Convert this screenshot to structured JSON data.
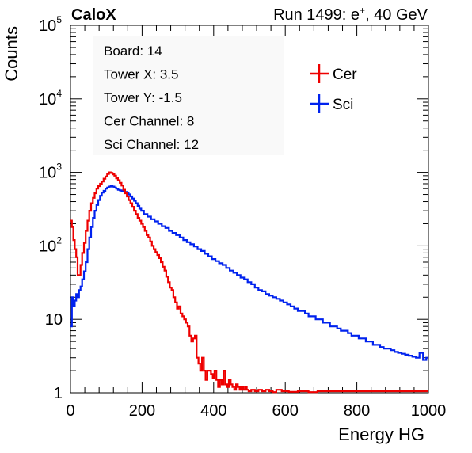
{
  "header": {
    "left": "CaloX",
    "right_prefix": "Run 1499: e",
    "right_sup": "+",
    "right_suffix": ", 40 GeV"
  },
  "info_box": {
    "lines": [
      "Board: 14",
      "Tower X: 3.5",
      "Tower Y: -1.5",
      "Cer Channel: 8",
      "Sci Channel: 12"
    ]
  },
  "colors": {
    "cer": "#ee0000",
    "sci": "#0022ee",
    "axis": "#000000"
  },
  "chart_data": {
    "type": "line",
    "style": "step histogram",
    "xlabel": "Energy HG",
    "ylabel": "Counts",
    "xlim": [
      0,
      1000
    ],
    "ylim": [
      1,
      100000
    ],
    "yscale": "log",
    "legend_placement": "top-right",
    "x_ticks": [
      "0",
      "200",
      "400",
      "600",
      "800",
      "1000"
    ],
    "y_ticks": [
      {
        "base": "1",
        "exp": ""
      },
      {
        "base": "10",
        "exp": ""
      },
      {
        "base": "10",
        "exp": "2"
      },
      {
        "base": "10",
        "exp": "3"
      },
      {
        "base": "10",
        "exp": "4"
      },
      {
        "base": "10",
        "exp": "5"
      }
    ],
    "series": [
      {
        "name": "Cer",
        "color": "#ee0000",
        "x": [
          2,
          6,
          10,
          14,
          18,
          22,
          26,
          30,
          35,
          40,
          45,
          50,
          55,
          60,
          65,
          70,
          75,
          80,
          85,
          90,
          95,
          100,
          105,
          110,
          115,
          120,
          125,
          130,
          135,
          140,
          145,
          150,
          155,
          160,
          165,
          170,
          175,
          180,
          185,
          190,
          195,
          200,
          205,
          210,
          215,
          220,
          225,
          230,
          235,
          240,
          245,
          250,
          255,
          260,
          265,
          270,
          275,
          280,
          285,
          290,
          295,
          300,
          305,
          310,
          315,
          320,
          325,
          330,
          335,
          340,
          345,
          350,
          355,
          360,
          365,
          370,
          375,
          380,
          385,
          390,
          395,
          400,
          405,
          410,
          415,
          420,
          425,
          430,
          435,
          440,
          445,
          450,
          455,
          460,
          465,
          470,
          475,
          480,
          485,
          490,
          495,
          500,
          510,
          520,
          530,
          540,
          550,
          560,
          570,
          580,
          600,
          620,
          650,
          680,
          700
        ],
        "y": [
          220,
          180,
          120,
          90,
          70,
          40,
          40,
          55,
          80,
          110,
          160,
          220,
          300,
          380,
          450,
          520,
          600,
          650,
          700,
          750,
          820,
          880,
          950,
          1000,
          980,
          940,
          900,
          830,
          780,
          720,
          660,
          580,
          520,
          470,
          420,
          380,
          340,
          300,
          270,
          240,
          220,
          200,
          180,
          160,
          140,
          130,
          115,
          100,
          90,
          82,
          75,
          68,
          60,
          52,
          46,
          38,
          32,
          27,
          25,
          20,
          17,
          14,
          15,
          12,
          11,
          10,
          9,
          8,
          6,
          5,
          5.5,
          6,
          3,
          2.5,
          2,
          3,
          2,
          1.5,
          2,
          2,
          1.8,
          1.6,
          2,
          1.5,
          1.2,
          1.5,
          1.3,
          2,
          1.3,
          1.2,
          1.5,
          1.3,
          1.2,
          1.1,
          1.3,
          1.2,
          1.1,
          1.2,
          1.1,
          1.2,
          1.1,
          1.05,
          1.1,
          1.05,
          1.1,
          1.05,
          1.1,
          1.05,
          1.02,
          1.1,
          1.05,
          1.03,
          1.05,
          1.02,
          1.05
        ]
      },
      {
        "name": "Sci",
        "color": "#0022ee",
        "x": [
          2,
          6,
          10,
          14,
          18,
          22,
          26,
          30,
          35,
          40,
          45,
          50,
          55,
          60,
          65,
          70,
          75,
          80,
          85,
          90,
          95,
          100,
          105,
          110,
          115,
          120,
          125,
          130,
          135,
          140,
          145,
          150,
          155,
          160,
          165,
          170,
          175,
          180,
          185,
          190,
          195,
          200,
          210,
          220,
          230,
          240,
          250,
          260,
          270,
          280,
          290,
          300,
          310,
          320,
          330,
          340,
          350,
          360,
          370,
          380,
          390,
          400,
          410,
          420,
          430,
          440,
          450,
          460,
          470,
          480,
          490,
          500,
          510,
          520,
          530,
          540,
          550,
          560,
          570,
          580,
          590,
          600,
          610,
          620,
          630,
          640,
          650,
          660,
          670,
          680,
          690,
          700,
          710,
          720,
          730,
          740,
          750,
          760,
          770,
          780,
          790,
          800,
          810,
          820,
          830,
          840,
          850,
          860,
          870,
          880,
          890,
          900,
          910,
          920,
          930,
          940,
          950,
          960,
          970,
          980,
          990,
          998
        ],
        "y": [
          8,
          20,
          15,
          18,
          22,
          20,
          25,
          28,
          35,
          45,
          60,
          90,
          130,
          180,
          240,
          300,
          360,
          420,
          480,
          530,
          560,
          600,
          620,
          640,
          650,
          640,
          620,
          600,
          580,
          570,
          560,
          550,
          540,
          520,
          500,
          470,
          440,
          410,
          380,
          350,
          320,
          300,
          270,
          250,
          230,
          215,
          200,
          185,
          175,
          160,
          150,
          140,
          130,
          120,
          112,
          105,
          98,
          90,
          85,
          78,
          72,
          66,
          62,
          58,
          55,
          50,
          46,
          43,
          40,
          37,
          35,
          32,
          30,
          27,
          25,
          24,
          22,
          21,
          20,
          19,
          18,
          17,
          16,
          15,
          14,
          13,
          13,
          12,
          11,
          11,
          10,
          10,
          9,
          9,
          8,
          8,
          7.5,
          7,
          7,
          6.5,
          6,
          6,
          5.5,
          5.5,
          5,
          5,
          4.5,
          4.5,
          4.2,
          4,
          4,
          3.8,
          3.6,
          3.5,
          3.4,
          3.3,
          3.2,
          3.1,
          3,
          3.5,
          2.8,
          3
        ]
      }
    ]
  }
}
